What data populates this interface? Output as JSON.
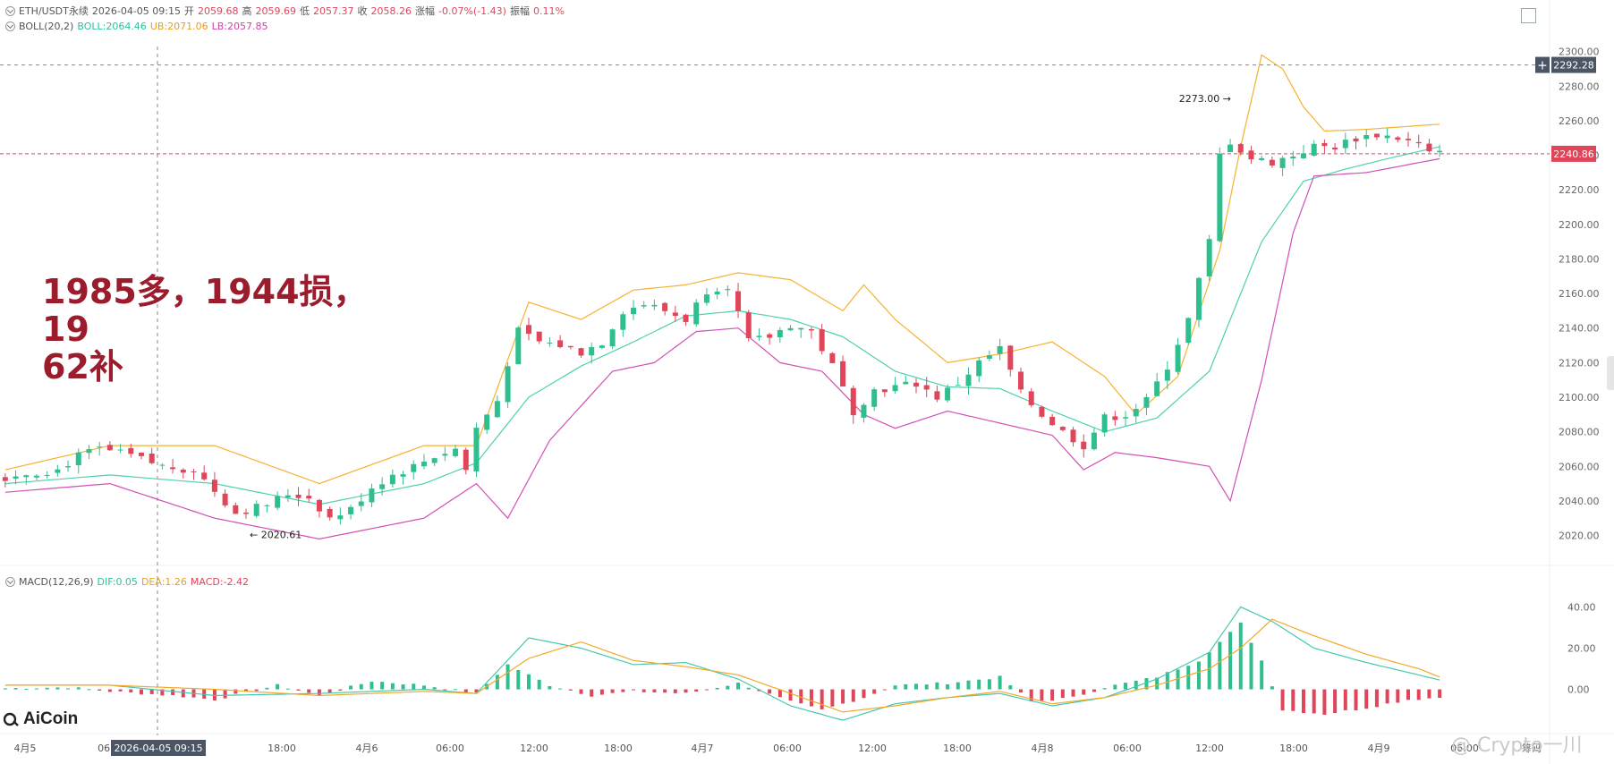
{
  "legend": {
    "symbol": "ETH/USDT永续",
    "datetime": "2026-04-05 09:15",
    "open_label": "开",
    "open": "2059.68",
    "high_label": "高",
    "high": "2059.69",
    "low_label": "低",
    "low": "2057.37",
    "close_label": "收",
    "close": "2058.26",
    "change_label": "涨幅",
    "change": "-0.07%(-1.43)",
    "amp_label": "振幅",
    "amp": "0.11%"
  },
  "boll_legend": {
    "name": "BOLL(20,2)",
    "boll": "BOLL:2064.46",
    "ub": "UB:2071.06",
    "lb": "LB:2057.85"
  },
  "macd_legend": {
    "name": "MACD(12,26,9)",
    "dif": "DIF:0.05",
    "dea": "DEA:1.26",
    "macd": "MACD:-2.42"
  },
  "annotation": {
    "line1": "1985多，1944损，19",
    "line2": "62补"
  },
  "brand": "AiCoin",
  "watermark": "@ Crypto一川",
  "colors": {
    "up": "#2fbf8f",
    "down": "#e0455a",
    "boll": "#4fd0b0",
    "ub": "#f5b230",
    "lb": "#d24fb4",
    "dif": "#45c7b0",
    "dea": "#f2a92a",
    "price_tag": "#e0455a",
    "cross_tag": "#4a5566",
    "annot": "#9b1c2c"
  },
  "chart_data": {
    "type": "candlestick",
    "symbol": "ETH/USDT永续",
    "x_tick_labels": [
      "4月5",
      "06:00",
      "18:00",
      "4月6",
      "06:00",
      "12:00",
      "18:00",
      "4月7",
      "06:00",
      "12:00",
      "18:00",
      "4月8",
      "06:00",
      "12:00",
      "18:00",
      "4月9",
      "06:00",
      "筹码"
    ],
    "y_tick_labels": [
      "2300.00",
      "2280.00",
      "2260.00",
      "2240.00",
      "2220.00",
      "2200.00",
      "2180.00",
      "2160.00",
      "2140.00",
      "2120.00",
      "2100.00",
      "2080.00",
      "2060.00",
      "2040.00",
      "2020.00"
    ],
    "ylim": [
      2012,
      2305
    ],
    "high_marker": {
      "label": "2273.00",
      "value": 2273.0
    },
    "low_marker": {
      "label": "2020.61",
      "value": 2020.61
    },
    "crosshair": {
      "price": "2292.28",
      "time": "2026-04-05 09:15"
    },
    "last_price": {
      "label": "2240.86",
      "value": 2240.86
    },
    "close_path": [
      [
        0,
        2053
      ],
      [
        3,
        2056
      ],
      [
        6,
        2058
      ],
      [
        8,
        2066
      ],
      [
        10,
        2070
      ],
      [
        13,
        2066
      ],
      [
        16,
        2060
      ],
      [
        19,
        2058
      ],
      [
        21,
        2046
      ],
      [
        23,
        2033
      ],
      [
        26,
        2038
      ],
      [
        28,
        2044
      ],
      [
        30,
        2042
      ],
      [
        32,
        2030
      ],
      [
        34,
        2035
      ],
      [
        36,
        2048
      ],
      [
        38,
        2055
      ],
      [
        40,
        2060
      ],
      [
        42,
        2066
      ],
      [
        44,
        2070
      ],
      [
        45,
        2058
      ],
      [
        46,
        2082
      ],
      [
        48,
        2098
      ],
      [
        49,
        2120
      ],
      [
        50,
        2138
      ],
      [
        52,
        2132
      ],
      [
        54,
        2130
      ],
      [
        56,
        2126
      ],
      [
        58,
        2132
      ],
      [
        60,
        2150
      ],
      [
        62,
        2154
      ],
      [
        64,
        2150
      ],
      [
        66,
        2145
      ],
      [
        68,
        2162
      ],
      [
        70,
        2165
      ],
      [
        72,
        2132
      ],
      [
        74,
        2135
      ],
      [
        76,
        2142
      ],
      [
        78,
        2138
      ],
      [
        80,
        2118
      ],
      [
        82,
        2092
      ],
      [
        84,
        2104
      ],
      [
        86,
        2106
      ],
      [
        88,
        2108
      ],
      [
        90,
        2100
      ],
      [
        92,
        2108
      ],
      [
        94,
        2120
      ],
      [
        96,
        2128
      ],
      [
        98,
        2102
      ],
      [
        100,
        2090
      ],
      [
        102,
        2080
      ],
      [
        104,
        2072
      ],
      [
        106,
        2088
      ],
      [
        108,
        2090
      ],
      [
        110,
        2098
      ],
      [
        112,
        2118
      ],
      [
        114,
        2145
      ],
      [
        116,
        2190
      ],
      [
        117,
        2240
      ],
      [
        117.5,
        2268
      ],
      [
        118,
        2248
      ],
      [
        120,
        2238
      ],
      [
        122,
        2236
      ],
      [
        124,
        2240
      ],
      [
        126,
        2245
      ],
      [
        128,
        2245
      ],
      [
        130,
        2250
      ],
      [
        132,
        2252
      ],
      [
        134,
        2250
      ],
      [
        136,
        2246
      ],
      [
        137,
        2240.86
      ]
    ],
    "boll_path": [
      [
        0,
        2050
      ],
      [
        10,
        2055
      ],
      [
        20,
        2050
      ],
      [
        30,
        2038
      ],
      [
        40,
        2050
      ],
      [
        45,
        2062
      ],
      [
        50,
        2100
      ],
      [
        55,
        2118
      ],
      [
        60,
        2132
      ],
      [
        65,
        2147
      ],
      [
        70,
        2150
      ],
      [
        75,
        2145
      ],
      [
        80,
        2135
      ],
      [
        85,
        2115
      ],
      [
        90,
        2106
      ],
      [
        95,
        2105
      ],
      [
        100,
        2092
      ],
      [
        105,
        2080
      ],
      [
        110,
        2088
      ],
      [
        115,
        2115
      ],
      [
        118,
        2160
      ],
      [
        120,
        2190
      ],
      [
        124,
        2225
      ],
      [
        128,
        2232
      ],
      [
        132,
        2238
      ],
      [
        137,
        2245
      ]
    ],
    "ub_path": [
      [
        0,
        2058
      ],
      [
        10,
        2072
      ],
      [
        20,
        2072
      ],
      [
        30,
        2050
      ],
      [
        40,
        2072
      ],
      [
        45,
        2072
      ],
      [
        50,
        2155
      ],
      [
        55,
        2145
      ],
      [
        60,
        2162
      ],
      [
        65,
        2165
      ],
      [
        70,
        2172
      ],
      [
        75,
        2168
      ],
      [
        80,
        2150
      ],
      [
        82,
        2165
      ],
      [
        85,
        2145
      ],
      [
        90,
        2120
      ],
      [
        95,
        2125
      ],
      [
        100,
        2132
      ],
      [
        105,
        2112
      ],
      [
        108,
        2090
      ],
      [
        112,
        2112
      ],
      [
        116,
        2185
      ],
      [
        118,
        2245
      ],
      [
        120,
        2298
      ],
      [
        122,
        2290
      ],
      [
        124,
        2268
      ],
      [
        126,
        2254
      ],
      [
        130,
        2255
      ],
      [
        137,
        2258
      ]
    ],
    "lb_path": [
      [
        0,
        2045
      ],
      [
        10,
        2050
      ],
      [
        20,
        2030
      ],
      [
        30,
        2018
      ],
      [
        40,
        2030
      ],
      [
        45,
        2050
      ],
      [
        48,
        2030
      ],
      [
        52,
        2075
      ],
      [
        58,
        2115
      ],
      [
        62,
        2120
      ],
      [
        66,
        2138
      ],
      [
        70,
        2140
      ],
      [
        74,
        2120
      ],
      [
        78,
        2115
      ],
      [
        82,
        2090
      ],
      [
        85,
        2082
      ],
      [
        90,
        2092
      ],
      [
        95,
        2085
      ],
      [
        100,
        2078
      ],
      [
        103,
        2058
      ],
      [
        106,
        2068
      ],
      [
        110,
        2065
      ],
      [
        115,
        2060
      ],
      [
        117,
        2040
      ],
      [
        120,
        2110
      ],
      [
        123,
        2195
      ],
      [
        125,
        2228
      ],
      [
        130,
        2230
      ],
      [
        137,
        2238
      ]
    ],
    "macd": {
      "y_tick_labels": [
        "40.00",
        "20.00",
        "0.00"
      ],
      "ylim": [
        -18,
        48
      ],
      "dif_path": [
        [
          0,
          2
        ],
        [
          10,
          2
        ],
        [
          20,
          -3
        ],
        [
          30,
          -2
        ],
        [
          40,
          0
        ],
        [
          45,
          -2
        ],
        [
          50,
          25
        ],
        [
          55,
          20
        ],
        [
          60,
          12
        ],
        [
          65,
          13
        ],
        [
          70,
          5
        ],
        [
          75,
          -8
        ],
        [
          80,
          -15
        ],
        [
          85,
          -7
        ],
        [
          90,
          -4
        ],
        [
          95,
          -2
        ],
        [
          100,
          -8
        ],
        [
          105,
          -4
        ],
        [
          110,
          5
        ],
        [
          115,
          18
        ],
        [
          118,
          40
        ],
        [
          121,
          33
        ],
        [
          125,
          20
        ],
        [
          130,
          13
        ],
        [
          135,
          7
        ],
        [
          137,
          4.5
        ]
      ],
      "dea_path": [
        [
          0,
          2
        ],
        [
          10,
          2
        ],
        [
          20,
          0
        ],
        [
          30,
          -3
        ],
        [
          40,
          -1
        ],
        [
          45,
          -2
        ],
        [
          50,
          15
        ],
        [
          55,
          23
        ],
        [
          60,
          14
        ],
        [
          65,
          11
        ],
        [
          70,
          7
        ],
        [
          75,
          -2
        ],
        [
          80,
          -11
        ],
        [
          85,
          -8
        ],
        [
          90,
          -4
        ],
        [
          95,
          -1
        ],
        [
          100,
          -7
        ],
        [
          105,
          -4
        ],
        [
          110,
          2
        ],
        [
          115,
          10
        ],
        [
          118,
          20
        ],
        [
          121,
          34
        ],
        [
          125,
          26
        ],
        [
          130,
          17
        ],
        [
          135,
          10
        ],
        [
          137,
          6
        ]
      ],
      "hist_path": [
        [
          0,
          0.5
        ],
        [
          6,
          1
        ],
        [
          10,
          -1
        ],
        [
          16,
          -3
        ],
        [
          20,
          -5
        ],
        [
          26,
          2
        ],
        [
          30,
          -3
        ],
        [
          35,
          4
        ],
        [
          40,
          2
        ],
        [
          45,
          -2
        ],
        [
          48,
          12
        ],
        [
          52,
          2
        ],
        [
          56,
          -3
        ],
        [
          60,
          -1
        ],
        [
          65,
          -2
        ],
        [
          70,
          3
        ],
        [
          75,
          -6
        ],
        [
          78,
          -10
        ],
        [
          82,
          -4
        ],
        [
          85,
          2
        ],
        [
          90,
          3
        ],
        [
          95,
          6
        ],
        [
          98,
          -6
        ],
        [
          102,
          -4
        ],
        [
          105,
          1
        ],
        [
          110,
          6
        ],
        [
          114,
          14
        ],
        [
          118,
          32
        ],
        [
          120,
          14
        ],
        [
          122,
          -10
        ],
        [
          126,
          -12
        ],
        [
          130,
          -9
        ],
        [
          134,
          -5
        ],
        [
          137,
          -4
        ]
      ]
    }
  }
}
